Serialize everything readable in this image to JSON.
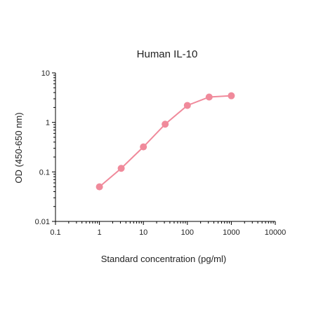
{
  "chart_data": {
    "type": "line",
    "title": "Human IL-10",
    "xlabel": "Standard concentration (pg/ml)",
    "ylabel": "OD (450-650 nm)",
    "x_scale": "log",
    "y_scale": "log",
    "xlim": [
      0.1,
      10000
    ],
    "ylim": [
      0.01,
      10
    ],
    "x_ticks": [
      0.1,
      1,
      10,
      100,
      1000,
      10000
    ],
    "x_tick_labels": [
      "0.1",
      "1",
      "10",
      "100",
      "1000",
      "10000"
    ],
    "y_ticks": [
      0.01,
      0.1,
      1,
      10
    ],
    "y_tick_labels": [
      "0.01",
      "0.1",
      "1",
      "10"
    ],
    "grid": false,
    "series": [
      {
        "x": [
          1,
          3.125,
          10,
          31.25,
          100,
          312.5,
          1000
        ],
        "y": [
          0.05,
          0.118,
          0.32,
          0.92,
          2.2,
          3.25,
          3.45
        ],
        "color": "#f08a9b",
        "marker": "circle"
      }
    ]
  }
}
